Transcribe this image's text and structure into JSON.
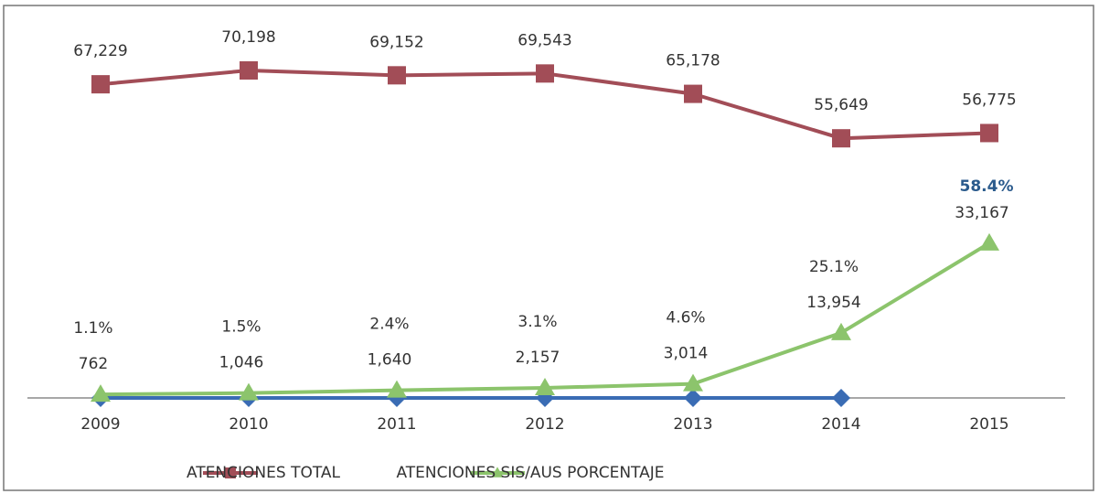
{
  "chart_data": {
    "type": "line",
    "categories": [
      "2009",
      "2010",
      "2011",
      "2012",
      "2013",
      "2014",
      "2015"
    ],
    "ylim": [
      0,
      80000
    ],
    "series": [
      {
        "name": "ATENCIONES TOTAL",
        "color": "#a24d57",
        "marker": "square",
        "values": [
          67229,
          70198,
          69152,
          69543,
          65178,
          55649,
          56775
        ],
        "value_labels": [
          "67,229",
          "70,198",
          "69,152",
          "69,543",
          "65,178",
          "55,649",
          "56,775"
        ]
      },
      {
        "name": "ATENCIONES SIS/AUS PORCENTAJE",
        "color": "#8cc46c",
        "marker": "triangle",
        "values": [
          762,
          1046,
          1640,
          2157,
          3014,
          13954,
          33167
        ],
        "value_labels": [
          "762",
          "1,046",
          "1,640",
          "2,157",
          "3,014",
          "13,954",
          "33,167"
        ],
        "shares": {
          "values": [
            1.1,
            1.5,
            2.4,
            3.1,
            4.6,
            25.1,
            58.4
          ],
          "value_labels": [
            "1.1%",
            "1.5%",
            "2.4%",
            "3.1%",
            "4.6%",
            "25.1%",
            "58.4%"
          ]
        }
      },
      {
        "color": "#3a6cb4",
        "marker": "diamond",
        "values": [
          0,
          0,
          0,
          0,
          0,
          0,
          null
        ]
      }
    ]
  }
}
